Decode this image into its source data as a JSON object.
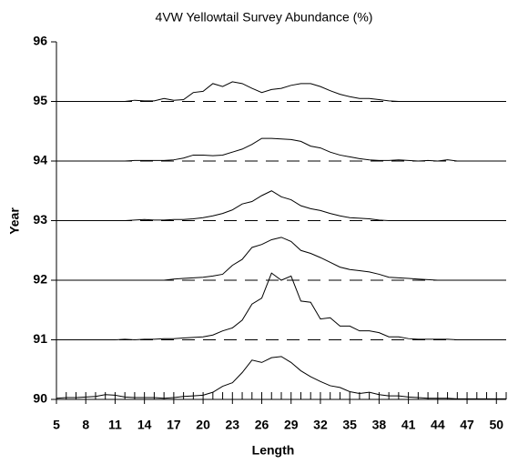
{
  "chart_data": {
    "type": "line",
    "title": "4VW Yellowtail Survey Abundance (%)",
    "x_label": "Length",
    "y_label": "Year",
    "x": [
      5,
      6,
      7,
      8,
      9,
      10,
      11,
      12,
      13,
      14,
      15,
      16,
      17,
      18,
      19,
      20,
      21,
      22,
      23,
      24,
      25,
      26,
      27,
      28,
      29,
      30,
      31,
      32,
      33,
      34,
      35,
      36,
      37,
      38,
      39,
      40,
      41,
      42,
      43,
      44,
      45,
      46,
      47,
      48,
      49,
      50,
      51
    ],
    "series": [
      {
        "color": "#000000",
        "values": [
          90.02,
          90.03,
          90.03,
          90.04,
          90.05,
          90.08,
          90.07,
          90.04,
          90.03,
          90.03,
          90.03,
          90.02,
          90.03,
          90.05,
          90.06,
          90.07,
          90.12,
          90.22,
          90.28,
          90.45,
          90.66,
          90.62,
          90.7,
          90.72,
          90.62,
          90.48,
          90.38,
          90.3,
          90.23,
          90.2,
          90.13,
          90.1,
          90.12,
          90.08,
          90.06,
          90.06,
          90.04,
          90.03,
          90.02,
          90.02,
          90.02,
          90.01,
          90.01,
          90.01,
          90.01,
          90.01,
          90.01
        ]
      },
      {
        "color": "#000000",
        "values": [
          91,
          91,
          91,
          91,
          91,
          91,
          91,
          91.01,
          91,
          91.01,
          91.01,
          91.02,
          91.02,
          91.03,
          91.04,
          91.05,
          91.08,
          91.15,
          91.2,
          91.33,
          91.6,
          91.7,
          92.12,
          92,
          92.07,
          91.65,
          91.63,
          91.35,
          91.37,
          91.23,
          91.23,
          91.15,
          91.15,
          91.12,
          91.05,
          91.05,
          91.02,
          91.01,
          91.01,
          91.01,
          91.01,
          91,
          91,
          91,
          91,
          91,
          91
        ]
      },
      {
        "color": "#000000",
        "values": [
          92,
          92,
          92,
          92,
          92,
          92,
          92,
          92,
          92,
          92,
          92,
          92,
          92.02,
          92.03,
          92.04,
          92.05,
          92.07,
          92.1,
          92.25,
          92.35,
          92.55,
          92.6,
          92.68,
          92.72,
          92.65,
          92.5,
          92.45,
          92.38,
          92.3,
          92.22,
          92.18,
          92.16,
          92.14,
          92.1,
          92.05,
          92.04,
          92.03,
          92.02,
          92.01,
          92,
          92,
          92,
          92,
          92,
          92,
          92,
          92
        ]
      },
      {
        "color": "#000000",
        "values": [
          93,
          93,
          93,
          93,
          93,
          93,
          93,
          93,
          93.01,
          93.02,
          93.01,
          93.01,
          93.02,
          93.02,
          93.03,
          93.05,
          93.08,
          93.12,
          93.18,
          93.28,
          93.32,
          93.42,
          93.5,
          93.4,
          93.35,
          93.25,
          93.2,
          93.17,
          93.12,
          93.08,
          93.05,
          93.04,
          93.03,
          93.01,
          93,
          93,
          93,
          93,
          93,
          93,
          93,
          93,
          93,
          93,
          93,
          93,
          93
        ]
      },
      {
        "color": "#000000",
        "values": [
          94,
          94,
          94,
          94,
          94,
          94,
          94,
          94,
          94.01,
          94.01,
          94.01,
          94.01,
          94.02,
          94.05,
          94.1,
          94.1,
          94.09,
          94.1,
          94.15,
          94.2,
          94.28,
          94.38,
          94.38,
          94.37,
          94.36,
          94.33,
          94.25,
          94.22,
          94.15,
          94.1,
          94.07,
          94.04,
          94.02,
          94.01,
          94.01,
          94.02,
          94.01,
          94,
          94.01,
          94,
          94.02,
          94,
          94,
          94,
          94,
          94,
          94
        ]
      },
      {
        "color": "#000000",
        "values": [
          95,
          95,
          95,
          95,
          95,
          95,
          95,
          95,
          95.02,
          95.01,
          95.01,
          95.05,
          95.02,
          95.03,
          95.15,
          95.17,
          95.3,
          95.25,
          95.33,
          95.3,
          95.22,
          95.15,
          95.2,
          95.22,
          95.27,
          95.3,
          95.3,
          95.25,
          95.18,
          95.12,
          95.08,
          95.05,
          95.05,
          95.03,
          95.01,
          95,
          95,
          95,
          95,
          95,
          95,
          95,
          95,
          95,
          95,
          95,
          95
        ]
      }
    ],
    "xlim": [
      5,
      51
    ],
    "xticks": [
      5,
      8,
      11,
      14,
      17,
      20,
      23,
      26,
      29,
      32,
      35,
      38,
      41,
      44,
      47,
      50
    ],
    "ylim": [
      90,
      96
    ],
    "yticks": [
      90,
      91,
      92,
      93,
      94,
      95,
      96
    ]
  }
}
